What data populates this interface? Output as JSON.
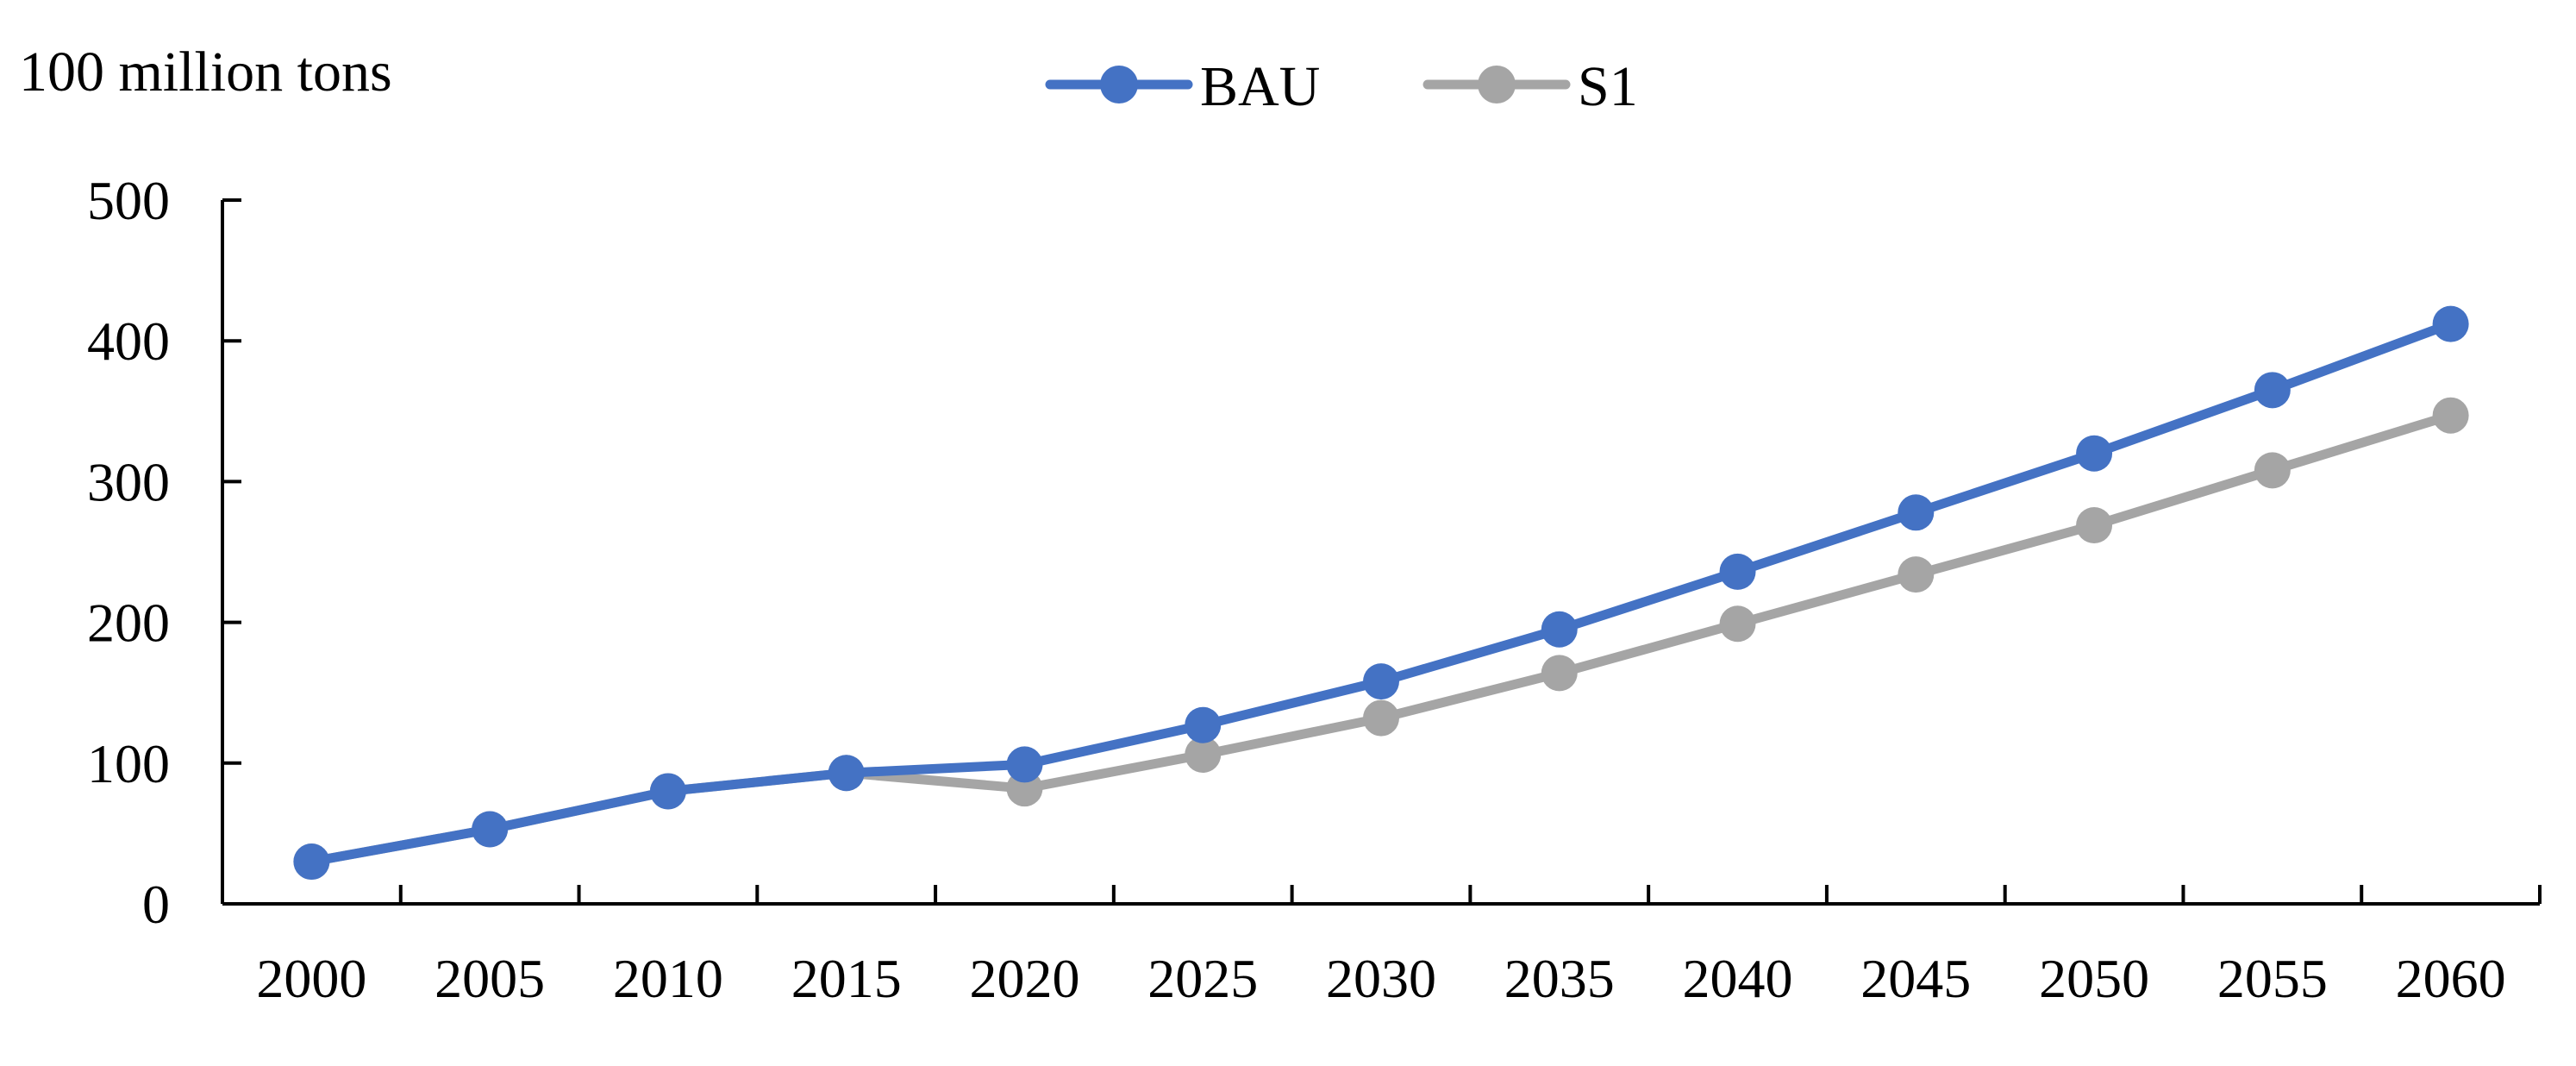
{
  "chart_data": {
    "type": "line",
    "title": "",
    "ylabel": "100 million tons",
    "xlabel": "",
    "x": [
      "2000",
      "2005",
      "2010",
      "2015",
      "2020",
      "2025",
      "2030",
      "2035",
      "2040",
      "2045",
      "2050",
      "2055",
      "2060"
    ],
    "ylim": [
      0,
      500
    ],
    "yticks": [
      "0",
      "100",
      "200",
      "300",
      "400",
      "500"
    ],
    "grid": false,
    "legend_position": "top-center",
    "series": [
      {
        "name": "BAU",
        "color": "#4472c4",
        "values": [
          30,
          53,
          80,
          93,
          99,
          127,
          158,
          195,
          236,
          278,
          320,
          365,
          412
        ]
      },
      {
        "name": "S1",
        "color": "#a5a5a5",
        "values": [
          30,
          53,
          80,
          93,
          82,
          106,
          132,
          164,
          199,
          234,
          269,
          308,
          347
        ]
      }
    ]
  }
}
